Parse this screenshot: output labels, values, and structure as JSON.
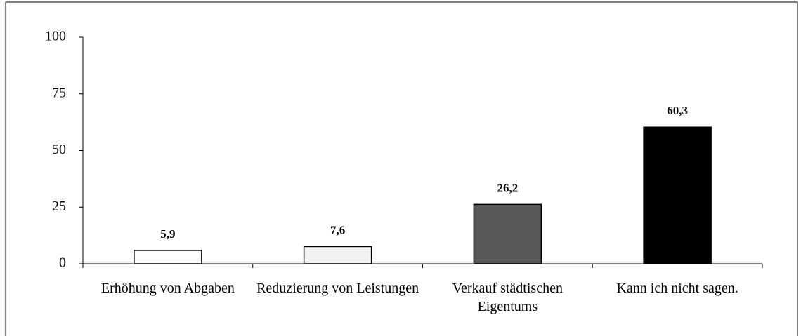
{
  "chart_data": {
    "type": "bar",
    "categories": [
      "Erhöhung von Abgaben",
      "Reduzierung von Leistungen",
      "Verkauf städtischen Eigentums",
      "Kann ich nicht sagen."
    ],
    "values": [
      5.9,
      7.6,
      26.2,
      60.3
    ],
    "value_labels": [
      "5,9",
      "7,6",
      "26,2",
      "60,3"
    ],
    "colors": [
      "#ffffff",
      "#f2f2f2",
      "#595959",
      "#000000"
    ],
    "ylim": [
      0,
      100
    ],
    "yticks": [
      0,
      25,
      50,
      75,
      100
    ],
    "grid": false
  }
}
